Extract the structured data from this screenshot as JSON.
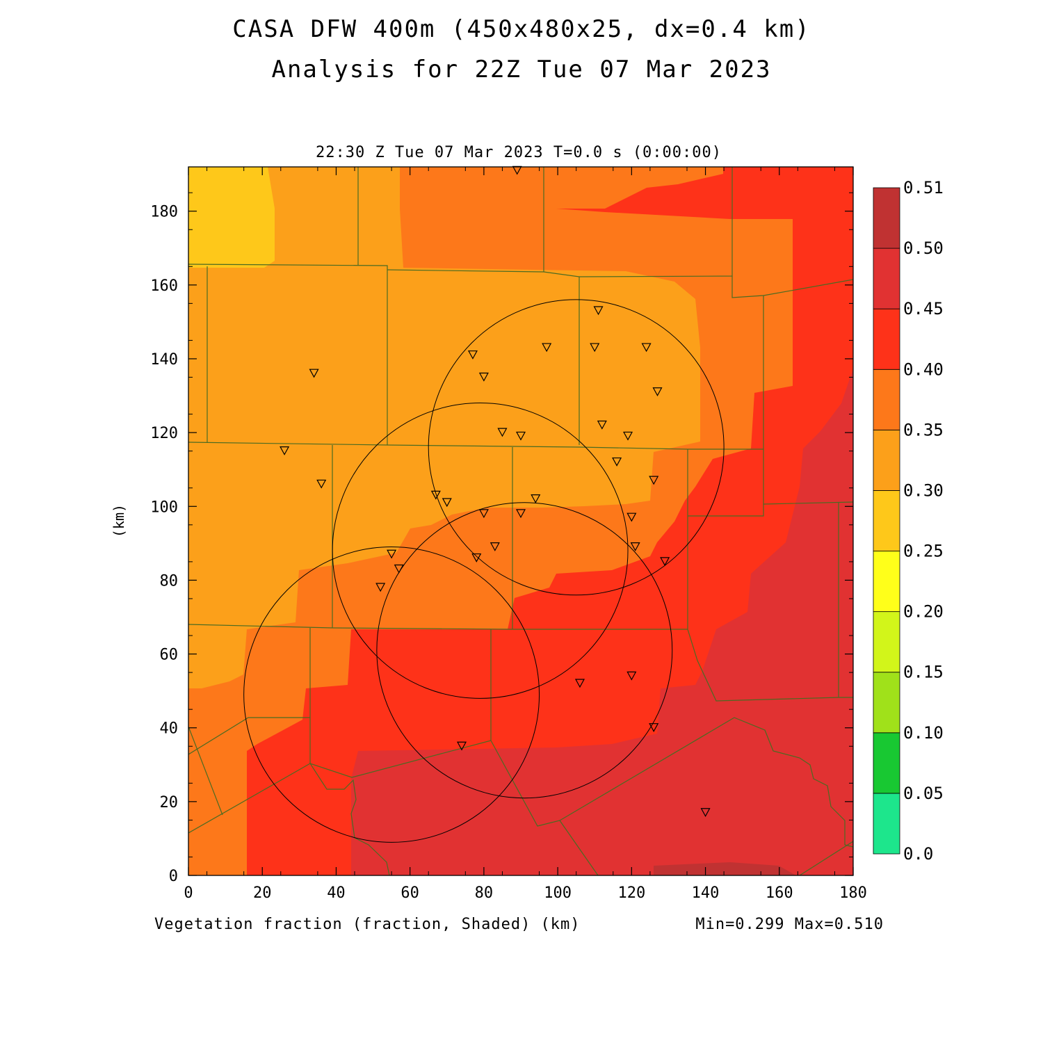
{
  "title_line1": "CASA DFW 400m (450x480x25, dx=0.4 km)",
  "title_line2": "Analysis for 22Z Tue 07 Mar 2023",
  "subtitle": "22:30 Z Tue 07 Mar 2023   T=0.0 s (0:00:00)",
  "footer_left": "Vegetation fraction (fraction, Shaded)  (km)",
  "footer_right": "Min=0.299 Max=0.510",
  "chart_data": {
    "type": "heatmap",
    "xlabel": "(km)",
    "ylabel": "(km)",
    "xlim": [
      0,
      180
    ],
    "ylim": [
      0,
      192
    ],
    "xticks": [
      0,
      20,
      40,
      60,
      80,
      100,
      120,
      140,
      160,
      180
    ],
    "yticks": [
      0,
      20,
      40,
      60,
      80,
      100,
      120,
      140,
      160,
      180
    ],
    "colorbar": {
      "labels": [
        "0.0",
        "0.05",
        "0.10",
        "0.15",
        "0.20",
        "0.25",
        "0.30",
        "0.35",
        "0.40",
        "0.45",
        "0.50",
        "0.51"
      ],
      "colors": [
        "#1de68c",
        "#18c832",
        "#a0e11a",
        "#d2f51a",
        "#ffff1a",
        "#fec81a",
        "#fca01a",
        "#fd781a",
        "#fe3219",
        "#e13232",
        "#c03232"
      ]
    },
    "min": 0.299,
    "max": 0.51,
    "radars": [
      {
        "center": [
          55,
          49
        ],
        "radius_km": 40
      },
      {
        "center": [
          79,
          88
        ],
        "radius_km": 40
      },
      {
        "center": [
          91,
          61
        ],
        "radius_km": 40
      },
      {
        "center": [
          105,
          116
        ],
        "radius_km": 40
      }
    ],
    "stations": [
      [
        34,
        136
      ],
      [
        26,
        115
      ],
      [
        36,
        106
      ],
      [
        77,
        141
      ],
      [
        80,
        135
      ],
      [
        97,
        143
      ],
      [
        111,
        153
      ],
      [
        110,
        143
      ],
      [
        124,
        143
      ],
      [
        127,
        131
      ],
      [
        112,
        122
      ],
      [
        119,
        119
      ],
      [
        85,
        120
      ],
      [
        90,
        119
      ],
      [
        116,
        112
      ],
      [
        126,
        107
      ],
      [
        67,
        103
      ],
      [
        70,
        101
      ],
      [
        94,
        102
      ],
      [
        80,
        98
      ],
      [
        90,
        98
      ],
      [
        120,
        97
      ],
      [
        55,
        87
      ],
      [
        57,
        83
      ],
      [
        78,
        86
      ],
      [
        83,
        89
      ],
      [
        121,
        89
      ],
      [
        129,
        85
      ],
      [
        52,
        78
      ],
      [
        106,
        52
      ],
      [
        120,
        54
      ],
      [
        126,
        40
      ],
      [
        74,
        35
      ],
      [
        140,
        17
      ],
      [
        89,
        191
      ]
    ]
  }
}
